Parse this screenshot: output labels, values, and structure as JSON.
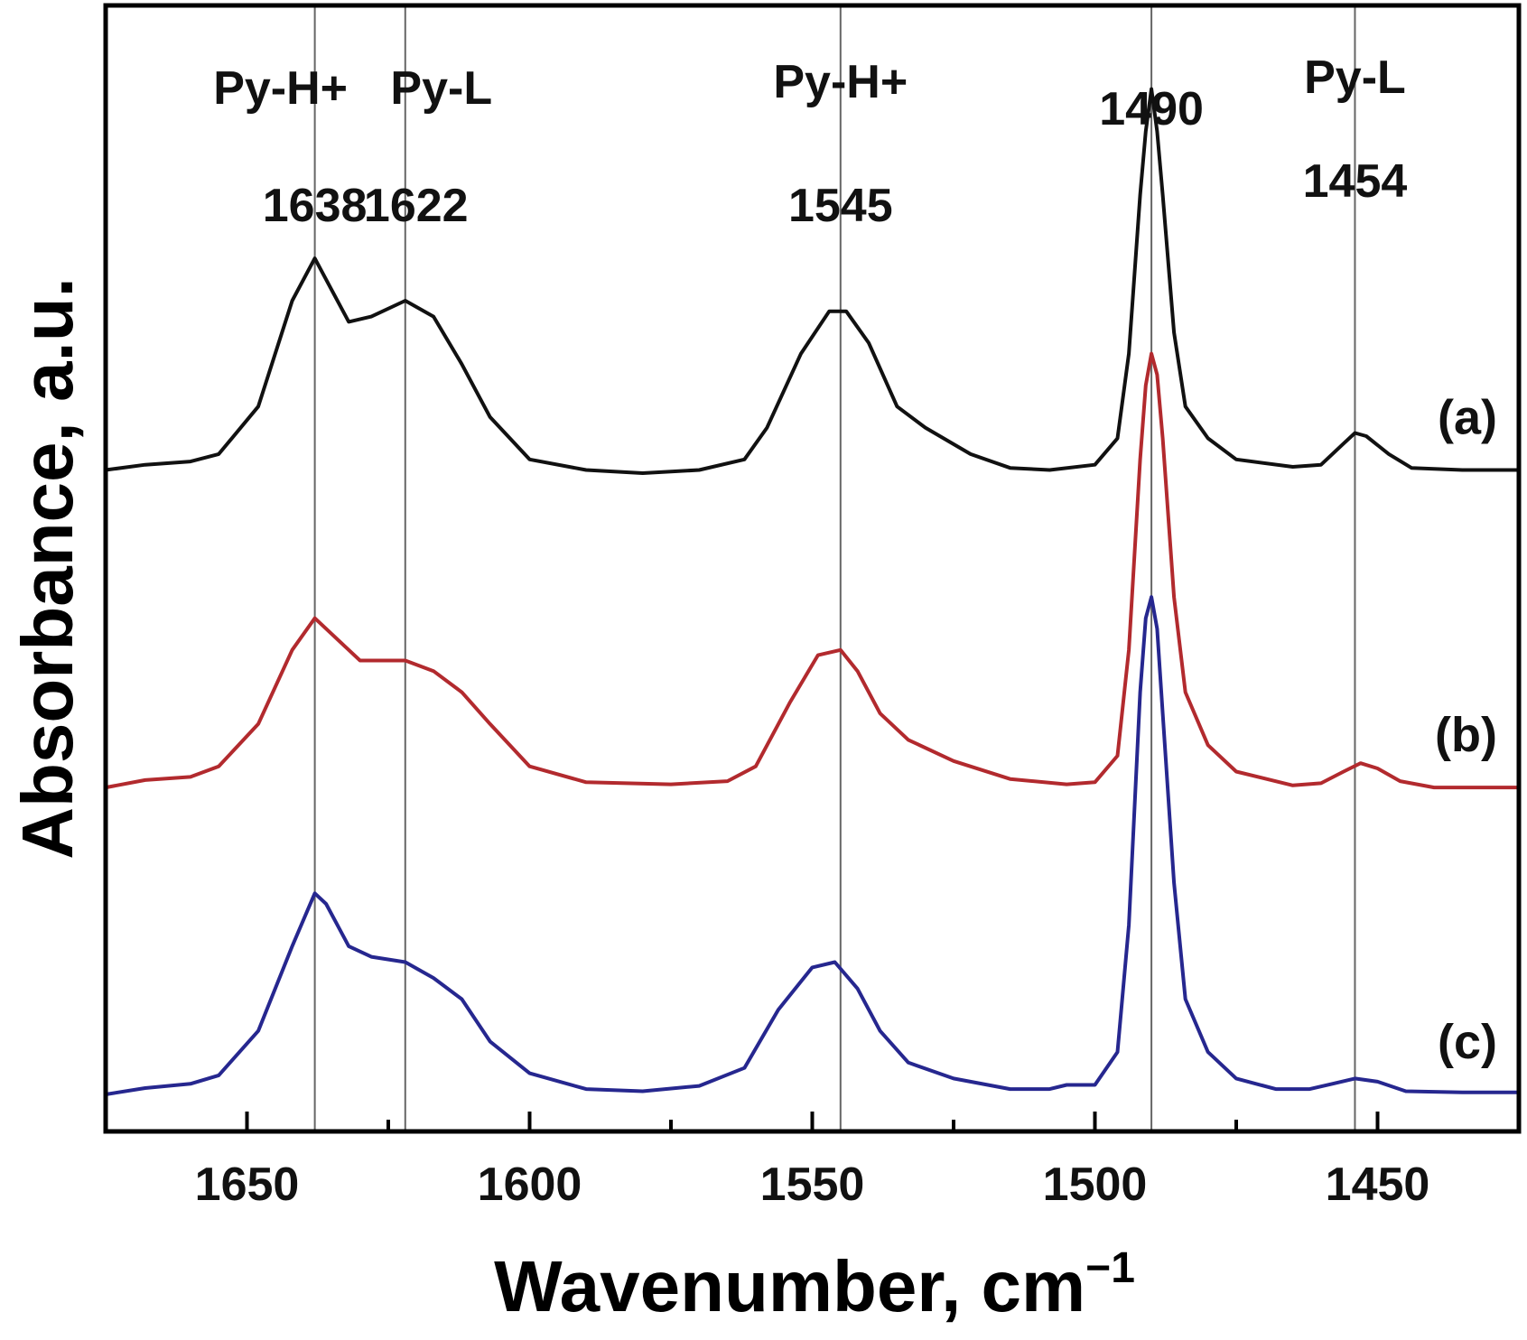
{
  "chart_data": {
    "type": "line",
    "title": "",
    "xlabel": "Wavenumber, cm",
    "xlabel_superscript": "−1",
    "ylabel": "Absorbance, a.u.",
    "xlim": [
      1675,
      1425
    ],
    "x_reversed": true,
    "ylim": [
      0,
      100
    ],
    "y_ticks_shown": false,
    "x_major_ticks": [
      1650,
      1600,
      1550,
      1500,
      1450
    ],
    "x_tick_labels": [
      "1650",
      "1600",
      "1550",
      "1500",
      "1450"
    ],
    "x_minor_tick_step": 25,
    "grid": false,
    "legend": "none",
    "reference_lines": [
      {
        "x": 1638,
        "label": "1638",
        "assignment": "Py-H+"
      },
      {
        "x": 1622,
        "label": "1622",
        "assignment": "Py-L"
      },
      {
        "x": 1545,
        "label": "1545",
        "assignment": "Py-H+"
      },
      {
        "x": 1490,
        "label": "1490",
        "assignment": ""
      },
      {
        "x": 1454,
        "label": "1454",
        "assignment": "Py-L"
      }
    ],
    "series": [
      {
        "name": "(a)",
        "color": "#111111",
        "baseline": 59,
        "points": [
          [
            1675,
            59
          ],
          [
            1668,
            59.5
          ],
          [
            1660,
            59.8
          ],
          [
            1655,
            60.5
          ],
          [
            1648,
            65
          ],
          [
            1642,
            75
          ],
          [
            1638,
            79
          ],
          [
            1635,
            76
          ],
          [
            1632,
            73
          ],
          [
            1628,
            73.5
          ],
          [
            1622,
            75
          ],
          [
            1617,
            73.5
          ],
          [
            1612,
            69
          ],
          [
            1607,
            64
          ],
          [
            1600,
            60
          ],
          [
            1590,
            59
          ],
          [
            1580,
            58.7
          ],
          [
            1570,
            59
          ],
          [
            1562,
            60
          ],
          [
            1558,
            63
          ],
          [
            1552,
            70
          ],
          [
            1547,
            74
          ],
          [
            1544,
            74
          ],
          [
            1540,
            71
          ],
          [
            1535,
            65
          ],
          [
            1530,
            63
          ],
          [
            1522,
            60.5
          ],
          [
            1515,
            59.2
          ],
          [
            1508,
            59
          ],
          [
            1500,
            59.5
          ],
          [
            1496,
            62
          ],
          [
            1494,
            70
          ],
          [
            1492,
            85
          ],
          [
            1491,
            91
          ],
          [
            1490,
            95
          ],
          [
            1489,
            91
          ],
          [
            1488,
            85
          ],
          [
            1486,
            72
          ],
          [
            1484,
            65
          ],
          [
            1480,
            62
          ],
          [
            1475,
            60
          ],
          [
            1465,
            59.3
          ],
          [
            1460,
            59.5
          ],
          [
            1456,
            61.5
          ],
          [
            1454,
            62.5
          ],
          [
            1452,
            62.2
          ],
          [
            1448,
            60.5
          ],
          [
            1444,
            59.2
          ],
          [
            1435,
            59
          ],
          [
            1425,
            59
          ]
        ]
      },
      {
        "name": "(b)",
        "color": "#b22a2e",
        "baseline": 29,
        "points": [
          [
            1675,
            29
          ],
          [
            1668,
            29.7
          ],
          [
            1660,
            30
          ],
          [
            1655,
            31
          ],
          [
            1648,
            35
          ],
          [
            1642,
            42
          ],
          [
            1638,
            45
          ],
          [
            1635,
            43.5
          ],
          [
            1630,
            41
          ],
          [
            1626,
            41
          ],
          [
            1622,
            41
          ],
          [
            1617,
            40
          ],
          [
            1612,
            38
          ],
          [
            1607,
            35
          ],
          [
            1600,
            31
          ],
          [
            1590,
            29.5
          ],
          [
            1575,
            29.3
          ],
          [
            1565,
            29.6
          ],
          [
            1560,
            31
          ],
          [
            1554,
            37
          ],
          [
            1549,
            41.5
          ],
          [
            1545,
            42
          ],
          [
            1542,
            40
          ],
          [
            1538,
            36
          ],
          [
            1533,
            33.5
          ],
          [
            1525,
            31.5
          ],
          [
            1515,
            29.8
          ],
          [
            1505,
            29.3
          ],
          [
            1500,
            29.5
          ],
          [
            1496,
            32
          ],
          [
            1494,
            42
          ],
          [
            1492,
            60
          ],
          [
            1491,
            67
          ],
          [
            1490,
            70
          ],
          [
            1489,
            68
          ],
          [
            1488,
            62
          ],
          [
            1486,
            47
          ],
          [
            1484,
            38
          ],
          [
            1480,
            33
          ],
          [
            1475,
            30.5
          ],
          [
            1465,
            29.2
          ],
          [
            1460,
            29.4
          ],
          [
            1456,
            30.5
          ],
          [
            1453,
            31.3
          ],
          [
            1450,
            30.8
          ],
          [
            1446,
            29.6
          ],
          [
            1440,
            29
          ],
          [
            1425,
            29
          ]
        ]
      },
      {
        "name": "(c)",
        "color": "#26278f",
        "baseline": 0,
        "points": [
          [
            1675,
            0
          ],
          [
            1668,
            0.6
          ],
          [
            1660,
            1
          ],
          [
            1655,
            1.8
          ],
          [
            1648,
            6
          ],
          [
            1642,
            14
          ],
          [
            1638,
            19
          ],
          [
            1636,
            18
          ],
          [
            1632,
            14
          ],
          [
            1628,
            13
          ],
          [
            1622,
            12.5
          ],
          [
            1617,
            11
          ],
          [
            1612,
            9
          ],
          [
            1607,
            5
          ],
          [
            1600,
            2
          ],
          [
            1590,
            0.5
          ],
          [
            1580,
            0.3
          ],
          [
            1570,
            0.8
          ],
          [
            1562,
            2.5
          ],
          [
            1556,
            8
          ],
          [
            1550,
            12
          ],
          [
            1546,
            12.5
          ],
          [
            1542,
            10
          ],
          [
            1538,
            6
          ],
          [
            1533,
            3
          ],
          [
            1525,
            1.5
          ],
          [
            1515,
            0.5
          ],
          [
            1508,
            0.5
          ],
          [
            1505,
            0.9
          ],
          [
            1500,
            0.9
          ],
          [
            1496,
            4
          ],
          [
            1494,
            16
          ],
          [
            1492,
            38
          ],
          [
            1491,
            45
          ],
          [
            1490,
            47
          ],
          [
            1489,
            44
          ],
          [
            1488,
            36
          ],
          [
            1486,
            20
          ],
          [
            1484,
            9
          ],
          [
            1480,
            4
          ],
          [
            1475,
            1.5
          ],
          [
            1468,
            0.5
          ],
          [
            1462,
            0.5
          ],
          [
            1458,
            1
          ],
          [
            1454,
            1.5
          ],
          [
            1450,
            1.2
          ],
          [
            1445,
            0.3
          ],
          [
            1435,
            0.2
          ],
          [
            1425,
            0.2
          ]
        ]
      }
    ]
  }
}
